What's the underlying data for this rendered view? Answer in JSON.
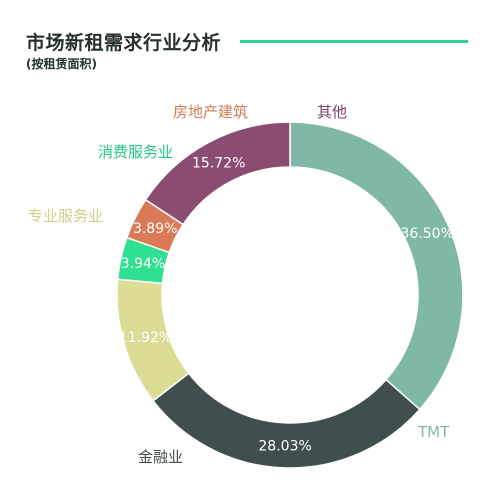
{
  "header": {
    "title": "市场新租需求行业分析",
    "subtitle": "(按租赁面积)",
    "rule_color": "#2fd38f"
  },
  "chart_data": {
    "type": "pie",
    "variant": "donut",
    "title": "市场新租需求行业分析",
    "subtitle": "(按租赁面积)",
    "unit": "%",
    "slices": [
      {
        "name": "TMT",
        "value": 36.5,
        "value_label": "36.50%",
        "color": "#7fb8a6",
        "label_color": "#7fb8a6"
      },
      {
        "name": "金融业",
        "value": 28.03,
        "value_label": "28.03%",
        "color": "#404e4e",
        "label_color": "#404e4e"
      },
      {
        "name": "专业服务业",
        "value": 11.92,
        "value_label": "11.92%",
        "color": "#dcdc96",
        "label_color": "#cfcf8a"
      },
      {
        "name": "消费服务业",
        "value": 3.94,
        "value_label": "3.94%",
        "color": "#2ee08f",
        "label_color": "#22c87e"
      },
      {
        "name": "房地产建筑",
        "value": 3.89,
        "value_label": "3.89%",
        "color": "#db7a56",
        "label_color": "#d27a56"
      },
      {
        "name": "其他",
        "value": 15.72,
        "value_label": "15.72%",
        "color": "#8a4c70",
        "label_color": "#7a3f63"
      }
    ]
  }
}
